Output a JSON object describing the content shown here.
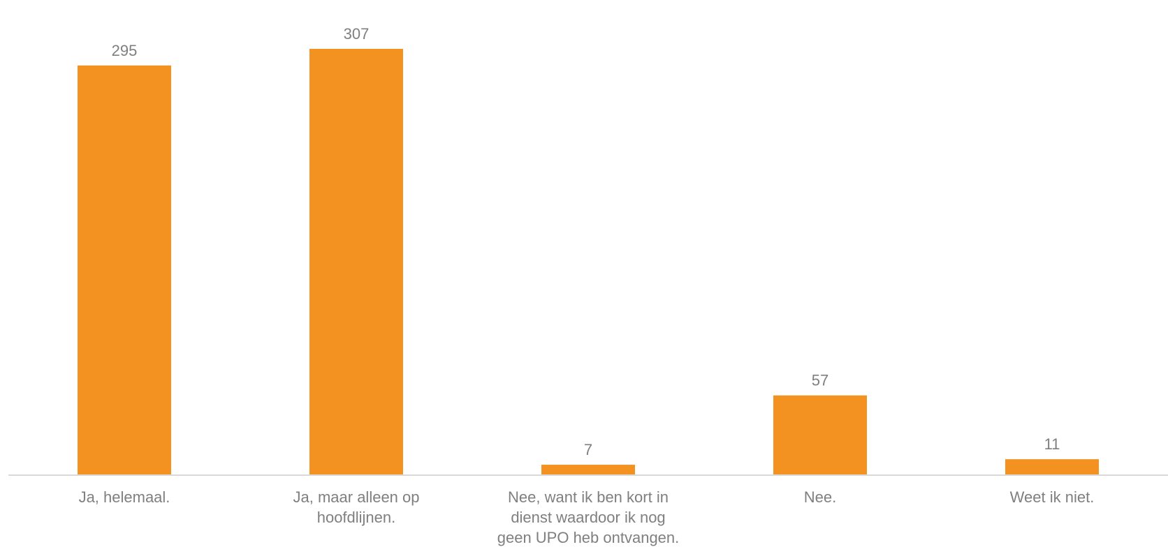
{
  "chart_data": {
    "type": "bar",
    "categories": [
      [
        "Ja, helemaal."
      ],
      [
        "Ja, maar alleen op",
        "hoofdlijnen."
      ],
      [
        "Nee, want ik ben kort in",
        "dienst waardoor ik nog",
        "geen UPO heb ontvangen."
      ],
      [
        "Nee."
      ],
      [
        "Weet ik niet."
      ]
    ],
    "values": [
      295,
      307,
      7,
      57,
      11
    ],
    "data_labels": [
      "295",
      "307",
      "7",
      "57",
      "11"
    ],
    "title": "",
    "xlabel": "",
    "ylabel": "",
    "ylim": [
      0,
      330
    ],
    "grid": false,
    "legend": "none",
    "colors": {
      "bar": "#F39220",
      "axis": "#D9D9D9",
      "text": "#7F7F7F"
    }
  }
}
